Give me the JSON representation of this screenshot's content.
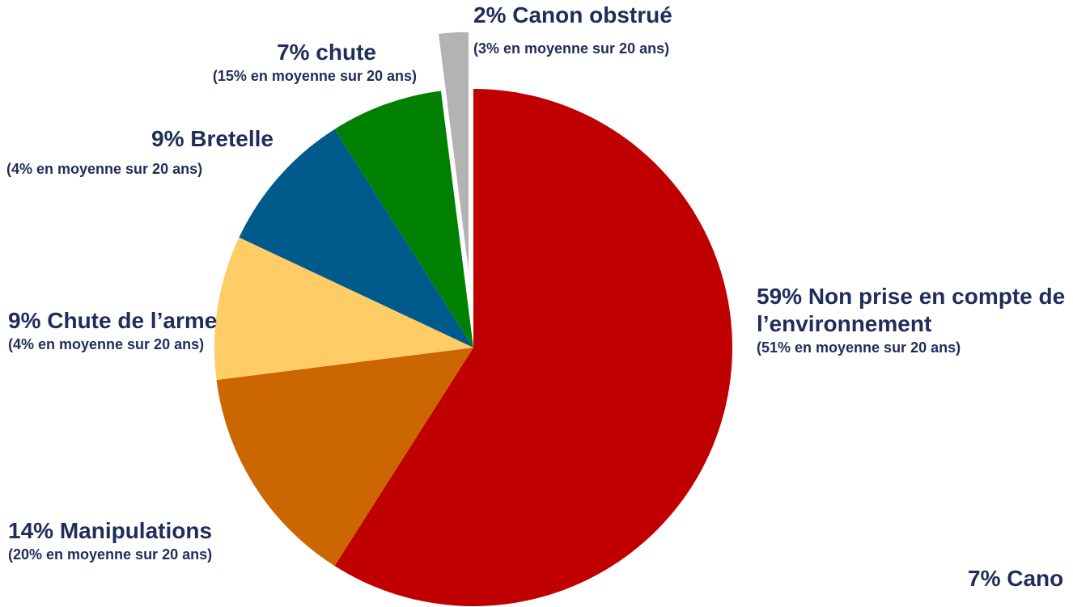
{
  "chart_data": {
    "type": "pie",
    "labels": [
      "59% Non prise en compte de l’environnement",
      "14% Manipulations",
      "9% Chute de l’arme",
      "9% Bretelle",
      "7% chute",
      "2% Canon obstrué"
    ],
    "notes": [
      "(51% en moyenne sur 20 ans)",
      "(20% en moyenne sur 20 ans)",
      "(4% en moyenne sur 20 ans)",
      "(4% en moyenne sur 20 ans)",
      "(15% en moyenne sur 20 ans)",
      "(3% en moyenne sur 20 ans)"
    ],
    "values": [
      59,
      14,
      9,
      9,
      7,
      2
    ],
    "colors": [
      "#c00000",
      "#cc6600",
      "#ffcc66",
      "#005a8b",
      "#008000",
      "#b3b3b3"
    ],
    "exploded": [
      5
    ],
    "annotation": "7% Cano"
  }
}
